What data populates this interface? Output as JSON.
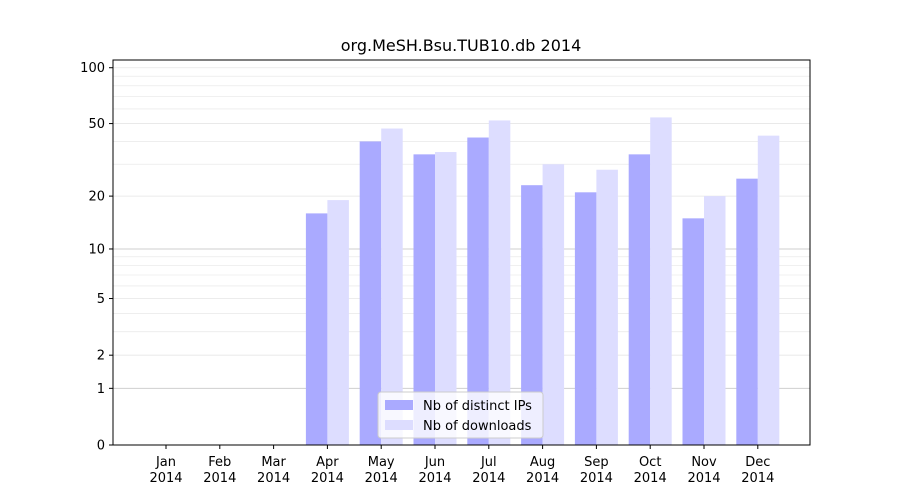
{
  "chart_data": {
    "type": "bar",
    "title": "org.MeSH.Bsu.TUB10.db 2014",
    "xlabel": "",
    "ylabel": "",
    "categories": [
      [
        "Jan",
        "2014"
      ],
      [
        "Feb",
        "2014"
      ],
      [
        "Mar",
        "2014"
      ],
      [
        "Apr",
        "2014"
      ],
      [
        "May",
        "2014"
      ],
      [
        "Jun",
        "2014"
      ],
      [
        "Jul",
        "2014"
      ],
      [
        "Aug",
        "2014"
      ],
      [
        "Sep",
        "2014"
      ],
      [
        "Oct",
        "2014"
      ],
      [
        "Nov",
        "2014"
      ],
      [
        "Dec",
        "2014"
      ]
    ],
    "series": [
      {
        "name": "Nb of distinct IPs",
        "color": "#aaaaff",
        "values": [
          0,
          0,
          0,
          16,
          40,
          34,
          42,
          23,
          21,
          34,
          15,
          25
        ]
      },
      {
        "name": "Nb of downloads",
        "color": "#ddddff",
        "values": [
          0,
          0,
          0,
          19,
          47,
          35,
          52,
          30,
          28,
          54,
          20,
          43
        ]
      }
    ],
    "yscale": "log1p",
    "ylim": [
      0,
      110
    ],
    "yticks": [
      0,
      1,
      2,
      5,
      10,
      20,
      50,
      100
    ],
    "ytick_labels": [
      "0",
      "1",
      "2",
      "5",
      "10",
      "20",
      "50",
      "100"
    ],
    "grid": true,
    "legend_position": "bottom-center"
  }
}
